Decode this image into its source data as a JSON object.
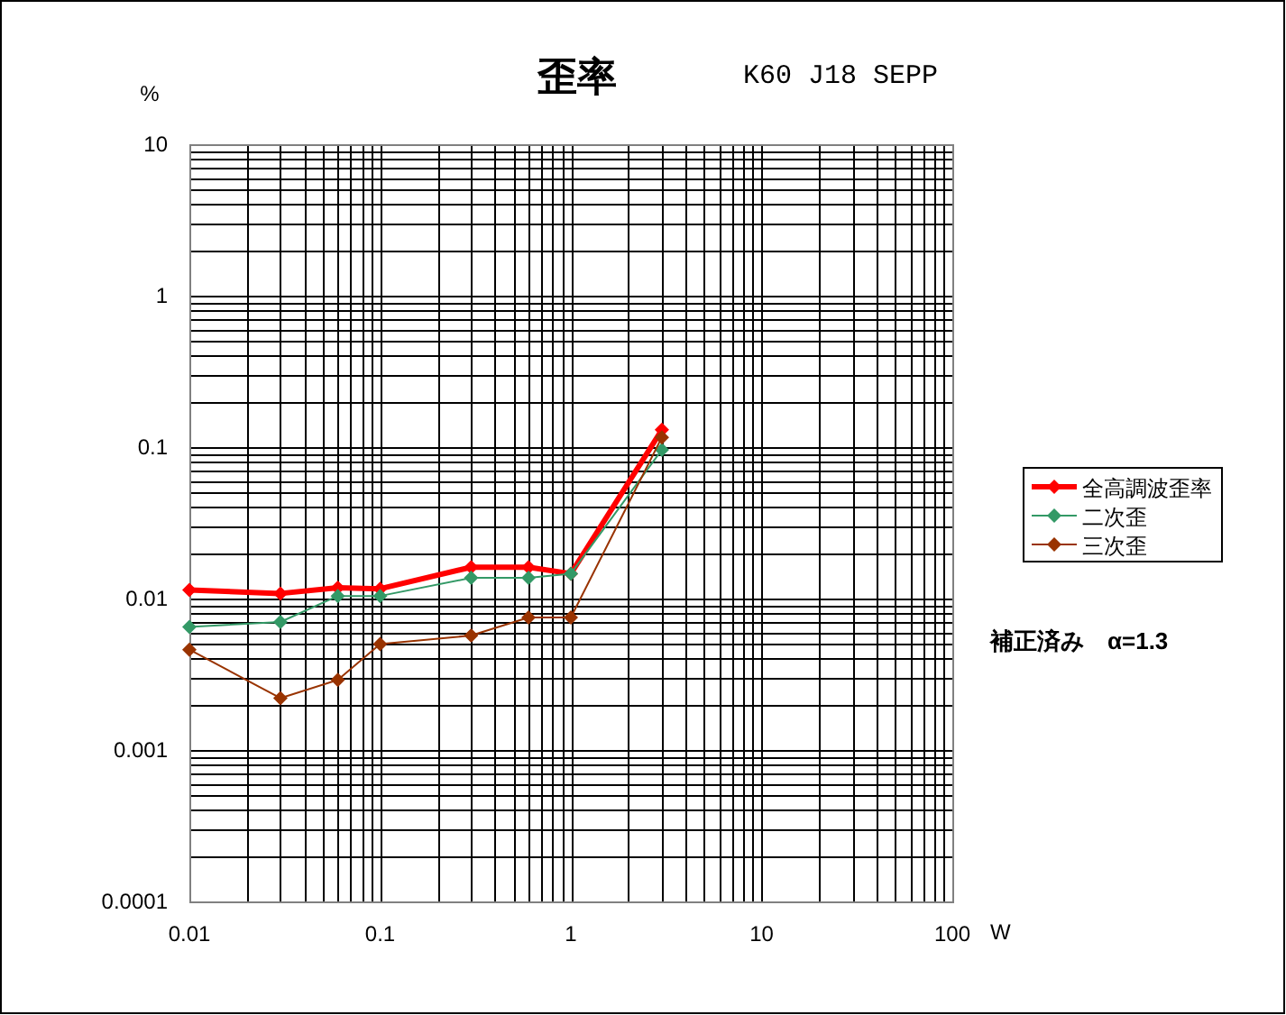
{
  "chart_data": {
    "type": "line",
    "title": "歪率",
    "subtitle": "K60 J18 SEPP",
    "xlabel": "W",
    "ylabel": "%",
    "annotations": [
      "補正済み　α=1.3"
    ],
    "x": [
      0.01,
      0.03,
      0.06,
      0.1,
      0.3,
      0.6,
      1,
      3
    ],
    "series": [
      {
        "name": "全高調波歪率",
        "color": "#ff0000",
        "values": [
          0.0114,
          0.0108,
          0.0118,
          0.0116,
          0.0161,
          0.0161,
          0.0146,
          0.13
        ]
      },
      {
        "name": "二次歪",
        "color": "#339966",
        "values": [
          0.0065,
          0.007,
          0.0104,
          0.0104,
          0.0137,
          0.0137,
          0.0146,
          0.096
        ]
      },
      {
        "name": "三次歪",
        "color": "#993300",
        "values": [
          0.0046,
          0.0022,
          0.0029,
          0.005,
          0.0057,
          0.0075,
          0.0075,
          0.116
        ]
      }
    ],
    "xlim": [
      0.01,
      100
    ],
    "ylim": [
      0.0001,
      10
    ],
    "xticks": [
      0.01,
      0.1,
      1,
      10,
      100
    ],
    "yticks": [
      0.0001,
      0.001,
      0.01,
      0.1,
      1,
      10
    ],
    "log": "xy",
    "grid": true,
    "legend": "right",
    "marker": "diamond",
    "line_style": "solid"
  }
}
